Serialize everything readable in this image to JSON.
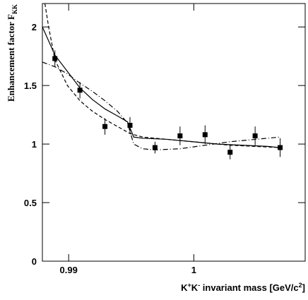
{
  "chart_data": {
    "type": "scatter",
    "x_label": [
      "K",
      "+",
      "K",
      "-",
      " invariant mass [GeV/c",
      "2",
      "]"
    ],
    "y_label": [
      "Enhancement factor F",
      "KK"
    ],
    "xlim": [
      0.9879,
      1.0089
    ],
    "ylim": [
      0,
      2.2
    ],
    "xticks": [
      0.99,
      1
    ],
    "yticks": [
      0,
      0.5,
      1,
      1.5,
      2
    ],
    "color": "#000000",
    "series": [
      {
        "type": "scatter",
        "x": [
          0.9889,
          0.9909,
          0.9929,
          0.9949,
          0.9969,
          0.9989,
          1.0009,
          1.0029,
          1.0049,
          1.0069
        ],
        "values": [
          1.73,
          1.46,
          1.15,
          1.16,
          0.97,
          1.07,
          1.08,
          0.93,
          1.07,
          0.97
        ],
        "errors": [
          0.07,
          0.07,
          0.07,
          0.07,
          0.05,
          0.08,
          0.08,
          0.06,
          0.08,
          0.08
        ]
      },
      {
        "type": "line",
        "line_style": "solid",
        "x": [
          0.9879,
          0.9889,
          0.9899,
          0.9909,
          0.9919,
          0.9929,
          0.9939,
          0.9947,
          0.9952,
          0.9959,
          0.9979,
          0.9999,
          1.0019,
          1.0039,
          1.0059,
          1.0069
        ],
        "values": [
          2.0,
          1.76,
          1.62,
          1.48,
          1.38,
          1.3,
          1.24,
          1.19,
          1.06,
          1.05,
          1.04,
          1.02,
          1.0,
          0.99,
          0.98,
          0.97
        ]
      },
      {
        "type": "line",
        "line_style": "dashed",
        "x": [
          0.9881,
          0.9884,
          0.9889,
          0.9899,
          0.9909,
          0.9919,
          0.9929,
          0.9939,
          0.9949,
          0.9959,
          0.9979,
          0.9999,
          1.0029,
          1.0069
        ],
        "values": [
          2.2,
          2.0,
          1.72,
          1.5,
          1.37,
          1.28,
          1.21,
          1.15,
          1.09,
          1.06,
          1.04,
          1.02,
          0.99,
          0.97
        ]
      },
      {
        "type": "line",
        "line_style": "dashdot",
        "x": [
          0.9879,
          0.9889,
          0.9899,
          0.9909,
          0.9919,
          0.9929,
          0.9939,
          0.9947,
          0.9952,
          0.9959,
          0.9969,
          0.9989,
          1.0009,
          1.0029,
          1.0049,
          1.0069
        ],
        "values": [
          1.7,
          1.66,
          1.6,
          1.52,
          1.45,
          1.37,
          1.28,
          1.18,
          1.0,
          0.96,
          0.95,
          0.96,
          0.99,
          1.02,
          1.04,
          1.06
        ]
      }
    ]
  }
}
